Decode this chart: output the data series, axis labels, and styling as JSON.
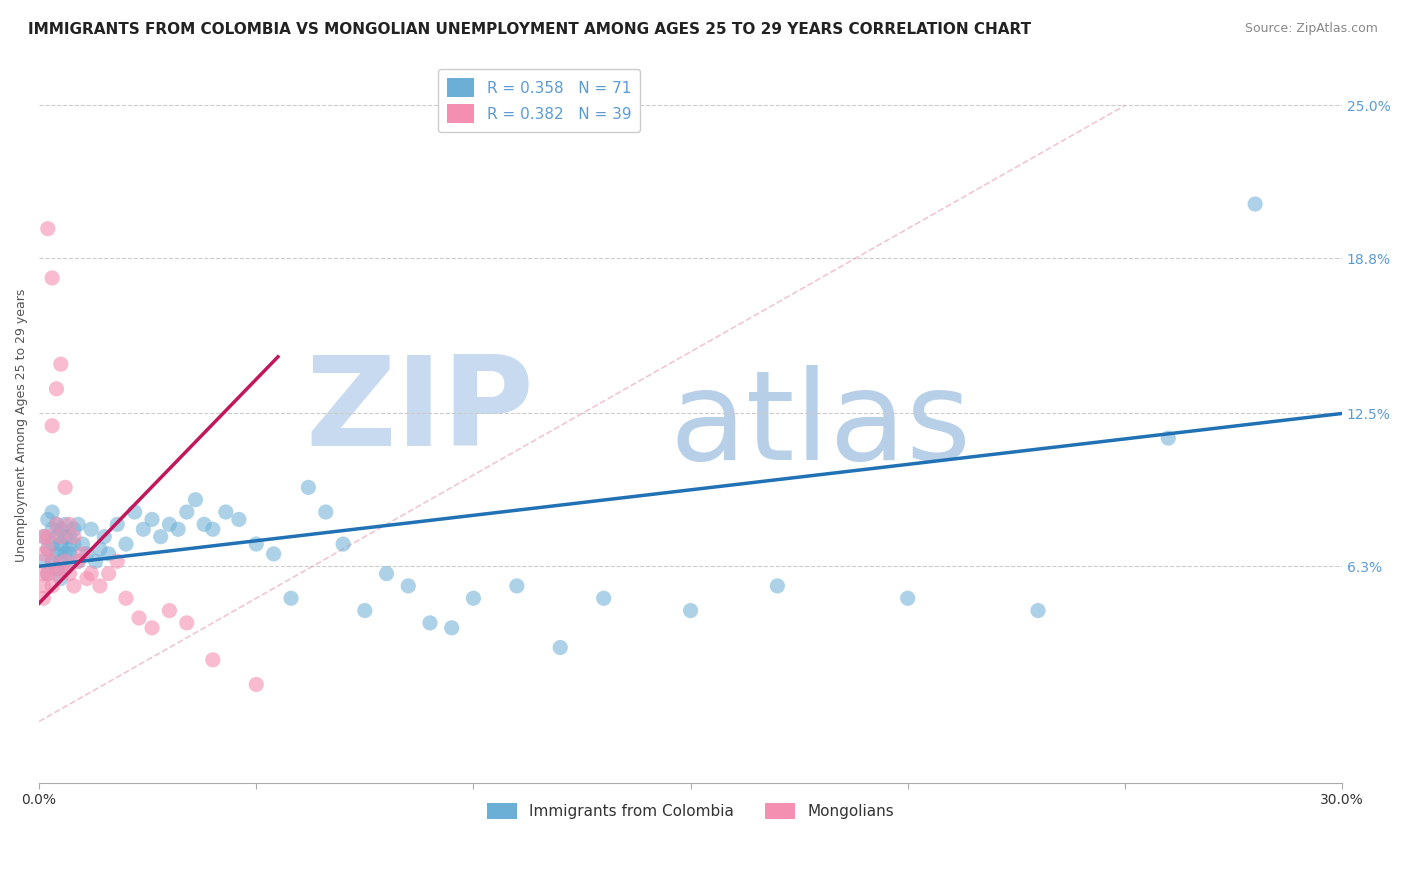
{
  "title": "IMMIGRANTS FROM COLOMBIA VS MONGOLIAN UNEMPLOYMENT AMONG AGES 25 TO 29 YEARS CORRELATION CHART",
  "source": "Source: ZipAtlas.com",
  "ylabel": "Unemployment Among Ages 25 to 29 years",
  "y_ticks": [
    0.0,
    0.063,
    0.125,
    0.188,
    0.25
  ],
  "y_tick_labels": [
    "",
    "6.3%",
    "12.5%",
    "18.8%",
    "25.0%"
  ],
  "xmin": 0.0,
  "xmax": 0.3,
  "ymin": -0.025,
  "ymax": 0.265,
  "blue_color": "#6baed6",
  "pink_color": "#f48fb1",
  "blue_line_color": "#2171b5",
  "pink_line_color": "#c2185b",
  "ref_line_color": "#f48fb1",
  "blue_R": 0.358,
  "blue_N": 71,
  "pink_R": 0.382,
  "pink_N": 39,
  "watermark_zip_color": "#c8daef",
  "watermark_atlas_color": "#b8cfe8",
  "grid_color": "#cccccc",
  "title_fontsize": 11,
  "source_fontsize": 9,
  "legend_fontsize": 11,
  "ylabel_fontsize": 9,
  "ytick_fontsize": 10,
  "blue_scatter_x": [
    0.001,
    0.001,
    0.002,
    0.002,
    0.002,
    0.003,
    0.003,
    0.003,
    0.003,
    0.004,
    0.004,
    0.004,
    0.004,
    0.005,
    0.005,
    0.005,
    0.005,
    0.005,
    0.006,
    0.006,
    0.006,
    0.006,
    0.007,
    0.007,
    0.007,
    0.008,
    0.008,
    0.009,
    0.009,
    0.01,
    0.011,
    0.012,
    0.013,
    0.014,
    0.015,
    0.016,
    0.018,
    0.02,
    0.022,
    0.024,
    0.026,
    0.028,
    0.03,
    0.032,
    0.034,
    0.036,
    0.038,
    0.04,
    0.043,
    0.046,
    0.05,
    0.054,
    0.058,
    0.062,
    0.066,
    0.07,
    0.075,
    0.08,
    0.085,
    0.09,
    0.095,
    0.1,
    0.11,
    0.12,
    0.13,
    0.15,
    0.17,
    0.2,
    0.23,
    0.26,
    0.28
  ],
  "blue_scatter_y": [
    0.075,
    0.065,
    0.082,
    0.07,
    0.06,
    0.078,
    0.072,
    0.065,
    0.085,
    0.068,
    0.075,
    0.062,
    0.08,
    0.07,
    0.078,
    0.065,
    0.072,
    0.058,
    0.075,
    0.068,
    0.062,
    0.08,
    0.07,
    0.075,
    0.068,
    0.072,
    0.078,
    0.065,
    0.08,
    0.072,
    0.068,
    0.078,
    0.065,
    0.07,
    0.075,
    0.068,
    0.08,
    0.072,
    0.085,
    0.078,
    0.082,
    0.075,
    0.08,
    0.078,
    0.085,
    0.09,
    0.08,
    0.078,
    0.085,
    0.082,
    0.072,
    0.068,
    0.05,
    0.095,
    0.085,
    0.072,
    0.045,
    0.06,
    0.055,
    0.04,
    0.038,
    0.05,
    0.055,
    0.03,
    0.05,
    0.045,
    0.055,
    0.05,
    0.045,
    0.115,
    0.21
  ],
  "pink_scatter_x": [
    0.001,
    0.001,
    0.001,
    0.001,
    0.001,
    0.002,
    0.002,
    0.002,
    0.002,
    0.003,
    0.003,
    0.003,
    0.003,
    0.004,
    0.004,
    0.004,
    0.005,
    0.005,
    0.005,
    0.006,
    0.006,
    0.007,
    0.007,
    0.008,
    0.008,
    0.009,
    0.01,
    0.011,
    0.012,
    0.014,
    0.016,
    0.018,
    0.02,
    0.023,
    0.026,
    0.03,
    0.034,
    0.04,
    0.05
  ],
  "pink_scatter_y": [
    0.068,
    0.075,
    0.06,
    0.055,
    0.05,
    0.2,
    0.075,
    0.06,
    0.07,
    0.18,
    0.12,
    0.065,
    0.055,
    0.135,
    0.08,
    0.06,
    0.145,
    0.075,
    0.062,
    0.095,
    0.065,
    0.08,
    0.06,
    0.075,
    0.055,
    0.065,
    0.068,
    0.058,
    0.06,
    0.055,
    0.06,
    0.065,
    0.05,
    0.042,
    0.038,
    0.045,
    0.04,
    0.025,
    0.015
  ],
  "blue_trend_x0": 0.0,
  "blue_trend_y0": 0.063,
  "blue_trend_x1": 0.3,
  "blue_trend_y1": 0.125,
  "pink_trend_x0": 0.0,
  "pink_trend_y0": 0.048,
  "pink_trend_x1": 0.055,
  "pink_trend_y1": 0.148
}
